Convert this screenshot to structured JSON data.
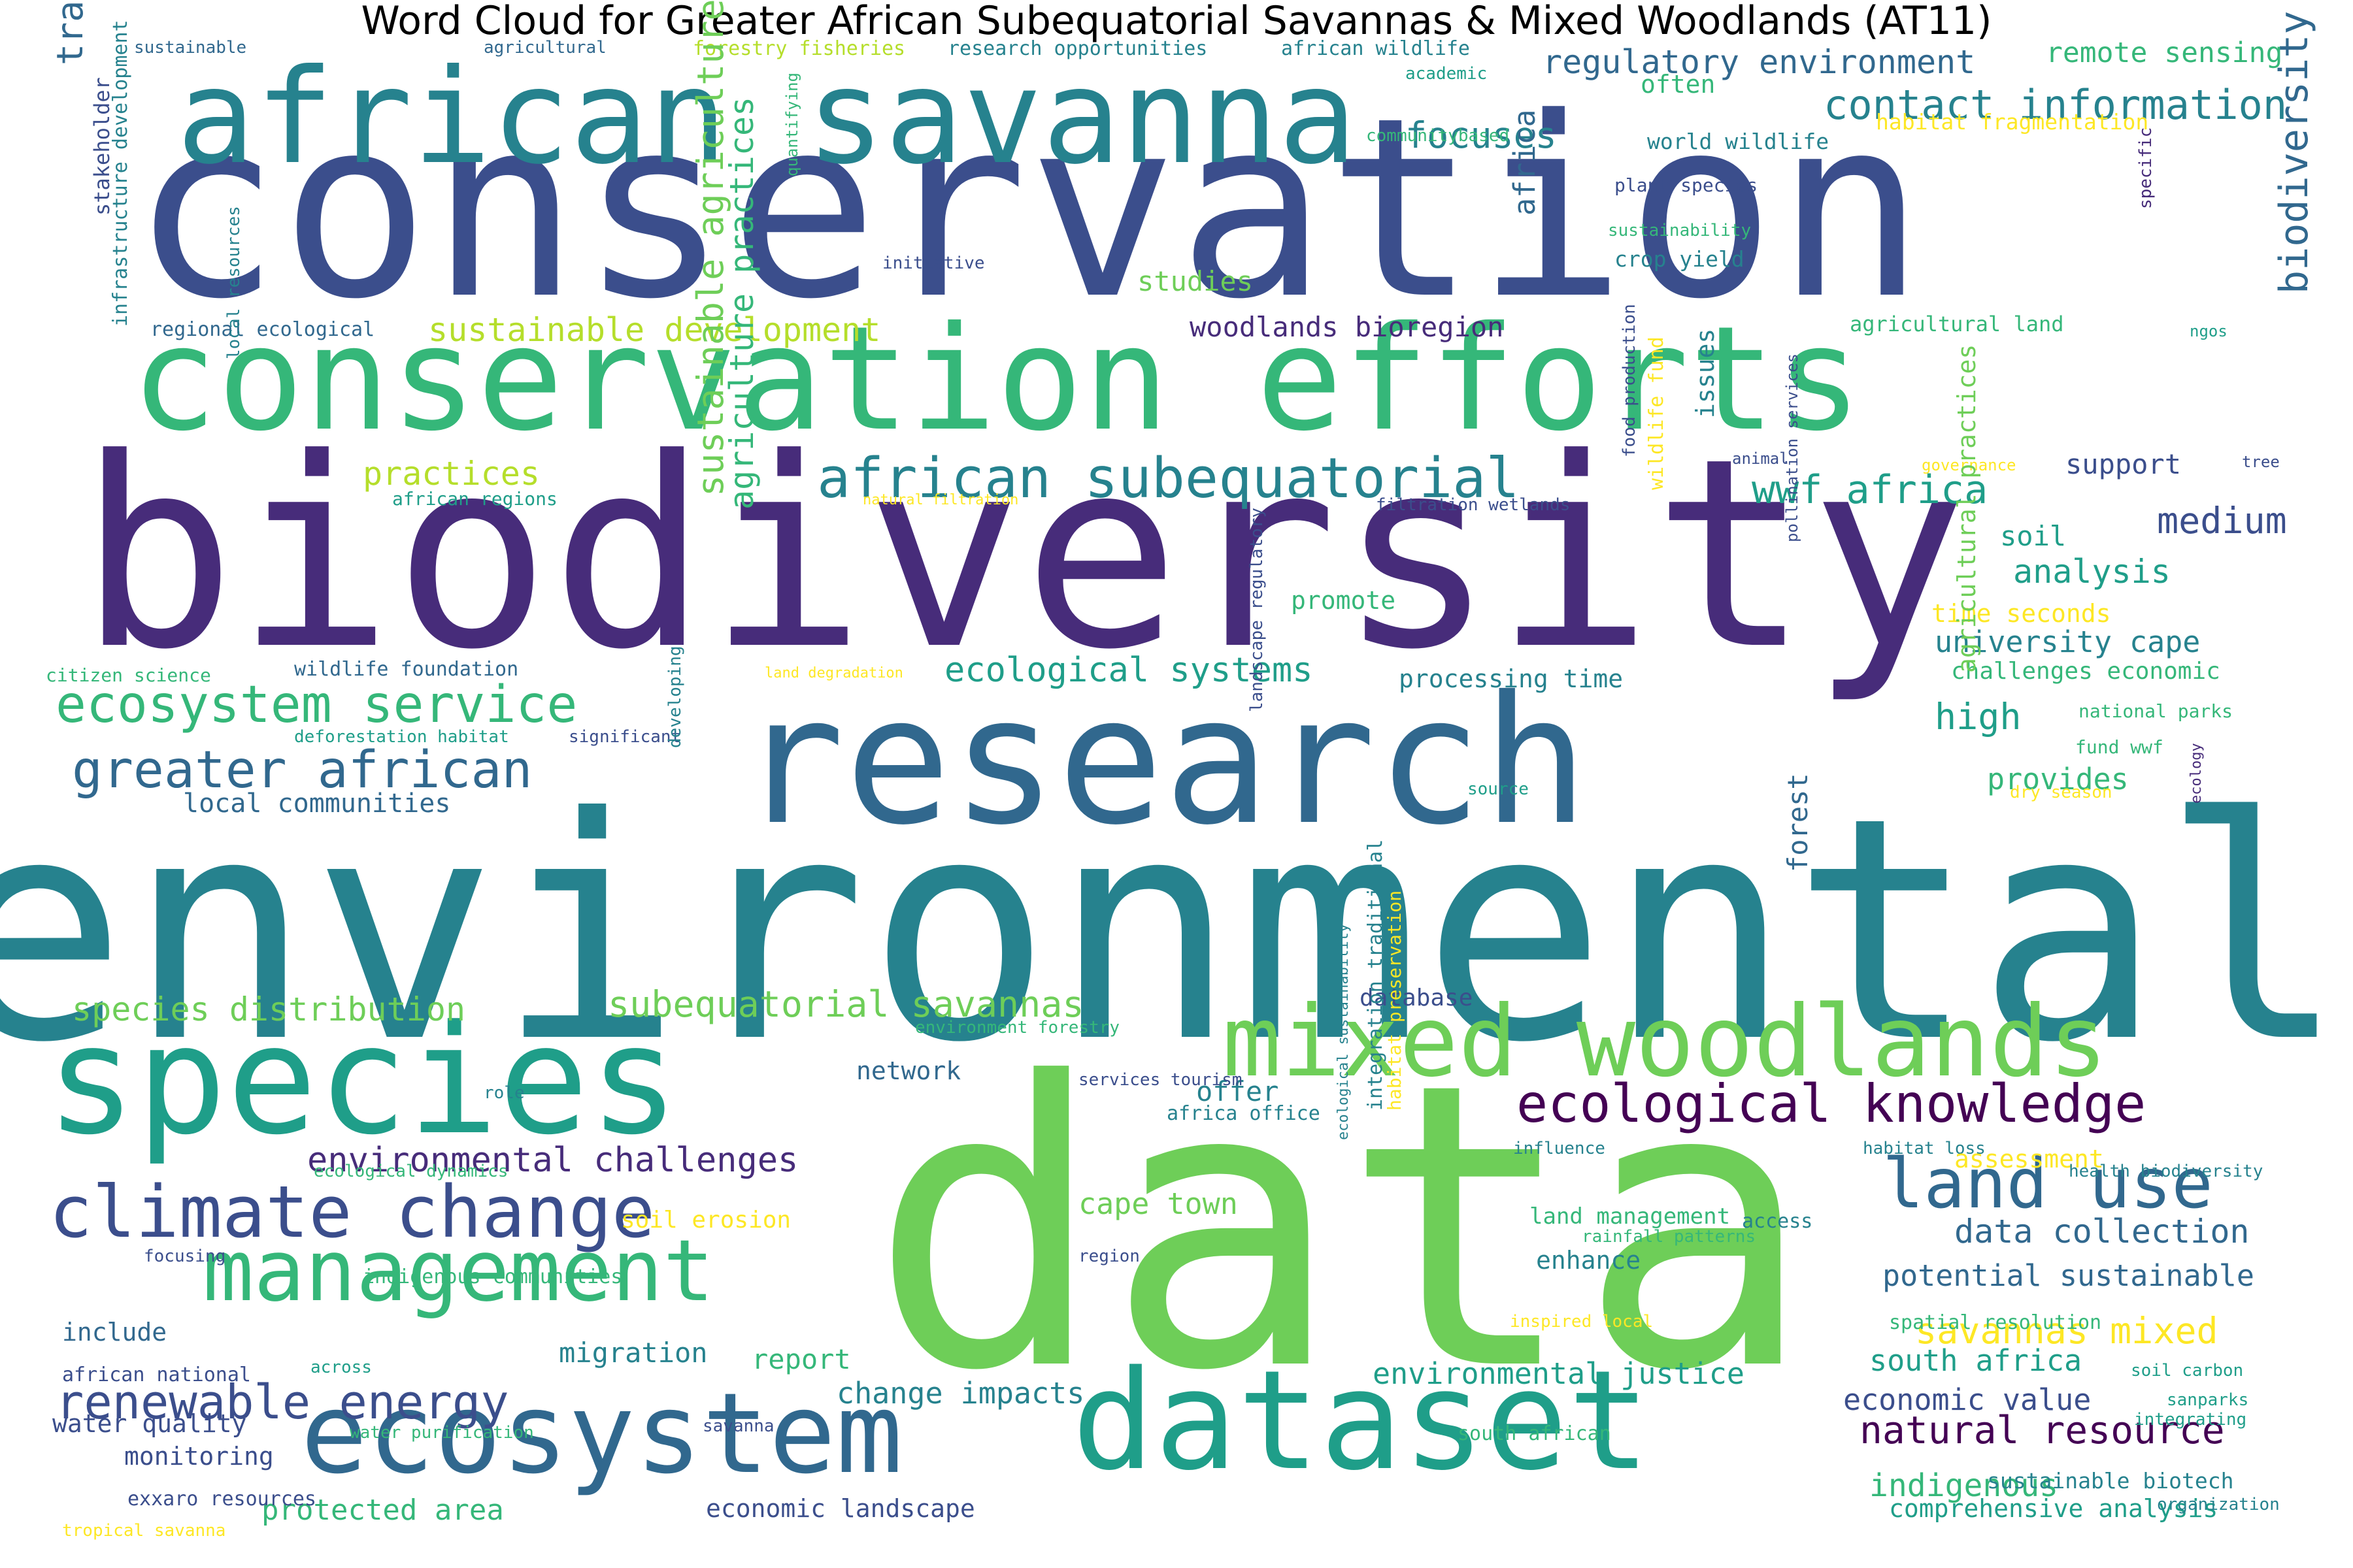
{
  "title": "Word Cloud for Greater African Subequatorial Savannas & Mixed Woodlands (AT11)",
  "palette": {
    "dark_purple": "#440154",
    "purple": "#472c7a",
    "indigo": "#3b4e8c",
    "blue": "#31688e",
    "teal_blue": "#26828e",
    "teal": "#1f9e89",
    "green_teal": "#35b779",
    "green": "#6ece58",
    "light_green": "#b5de2b",
    "yellow": "#fde725"
  },
  "words": [
    {
      "text": "conservation",
      "c": "indigo"
    },
    {
      "text": "biodiversity",
      "c": "purple"
    },
    {
      "text": "environmental",
      "c": "teal_blue"
    },
    {
      "text": "data",
      "c": "green"
    },
    {
      "text": "research",
      "c": "blue"
    },
    {
      "text": "african savanna",
      "c": "teal_blue"
    },
    {
      "text": "conservation efforts",
      "c": "green_teal"
    },
    {
      "text": "species",
      "c": "teal"
    },
    {
      "text": "dataset",
      "c": "teal"
    },
    {
      "text": "ecosystem",
      "c": "blue"
    },
    {
      "text": "mixed woodlands",
      "c": "green"
    },
    {
      "text": "management",
      "c": "green_teal"
    },
    {
      "text": "climate change",
      "c": "indigo"
    },
    {
      "text": "land use",
      "c": "blue"
    },
    {
      "text": "african subequatorial",
      "c": "teal_blue"
    },
    {
      "text": "greater african",
      "c": "blue"
    },
    {
      "text": "ecosystem service",
      "c": "green_teal"
    },
    {
      "text": "ecological knowledge",
      "c": "dark_purple"
    },
    {
      "text": "renewable energy",
      "c": "indigo"
    },
    {
      "text": "contact information",
      "c": "teal_blue"
    },
    {
      "text": "biodiversity conservation",
      "c": "blue"
    },
    {
      "text": "traditional ecological",
      "c": "blue"
    },
    {
      "text": "regulatory environment",
      "c": "blue"
    },
    {
      "text": "focuses",
      "c": "teal_blue"
    },
    {
      "text": "wwf africa",
      "c": "teal"
    },
    {
      "text": "practices",
      "c": "light_green"
    },
    {
      "text": "sustainable development",
      "c": "light_green"
    },
    {
      "text": "woodlands bioregion",
      "c": "purple"
    },
    {
      "text": "studies",
      "c": "green"
    },
    {
      "text": "ecological systems",
      "c": "teal"
    },
    {
      "text": "subequatorial savannas",
      "c": "green"
    },
    {
      "text": "species distribution",
      "c": "green"
    },
    {
      "text": "local communities",
      "c": "blue"
    },
    {
      "text": "environmental challenges",
      "c": "purple"
    },
    {
      "text": "natural resource",
      "c": "dark_purple"
    },
    {
      "text": "data collection",
      "c": "blue"
    },
    {
      "text": "potential sustainable",
      "c": "blue"
    },
    {
      "text": "savannas mixed",
      "c": "yellow"
    },
    {
      "text": "south africa",
      "c": "teal"
    },
    {
      "text": "indigenous",
      "c": "green_teal"
    },
    {
      "text": "environmental justice",
      "c": "teal"
    },
    {
      "text": "change impacts",
      "c": "teal_blue"
    },
    {
      "text": "protected area",
      "c": "green_teal"
    },
    {
      "text": "economic landscape",
      "c": "indigo"
    },
    {
      "text": "economic value",
      "c": "indigo"
    },
    {
      "text": "comprehensive analysis",
      "c": "teal"
    },
    {
      "text": "medium",
      "c": "indigo"
    },
    {
      "text": "analysis",
      "c": "teal"
    },
    {
      "text": "support",
      "c": "indigo"
    },
    {
      "text": "soil",
      "c": "teal"
    },
    {
      "text": "remote sensing",
      "c": "green_teal"
    },
    {
      "text": "university cape",
      "c": "teal_blue"
    },
    {
      "text": "high",
      "c": "teal"
    },
    {
      "text": "provides",
      "c": "green_teal"
    },
    {
      "text": "cape town",
      "c": "green"
    },
    {
      "text": "offer",
      "c": "teal_blue"
    },
    {
      "text": "enhance",
      "c": "teal_blue"
    },
    {
      "text": "network",
      "c": "blue"
    },
    {
      "text": "migration",
      "c": "teal_blue"
    },
    {
      "text": "report",
      "c": "green_teal"
    },
    {
      "text": "include",
      "c": "blue"
    },
    {
      "text": "water quality",
      "c": "indigo"
    },
    {
      "text": "monitoring",
      "c": "indigo"
    },
    {
      "text": "database",
      "c": "indigo"
    },
    {
      "text": "processing time",
      "c": "teal_blue"
    },
    {
      "text": "promote",
      "c": "green_teal"
    },
    {
      "text": "time seconds",
      "c": "yellow"
    },
    {
      "text": "challenges economic",
      "c": "green_teal"
    },
    {
      "text": "africa",
      "c": "blue"
    },
    {
      "text": "issues",
      "c": "teal_blue"
    },
    {
      "text": "often",
      "c": "green_teal"
    },
    {
      "text": "crop yield",
      "c": "teal_blue"
    },
    {
      "text": "world wildlife",
      "c": "teal_blue"
    },
    {
      "text": "habitat fragmentation",
      "c": "yellow"
    },
    {
      "text": "plant species",
      "c": "indigo"
    },
    {
      "text": "sustainability",
      "c": "green_teal"
    },
    {
      "text": "agricultural land",
      "c": "green_teal"
    },
    {
      "text": "forestry fisheries",
      "c": "light_green"
    },
    {
      "text": "research opportunities",
      "c": "teal_blue"
    },
    {
      "text": "african wildlife",
      "c": "teal_blue"
    },
    {
      "text": "sustainable",
      "c": "blue"
    },
    {
      "text": "agricultural",
      "c": "blue"
    },
    {
      "text": "academic",
      "c": "teal"
    },
    {
      "text": "communitybased",
      "c": "green_teal"
    },
    {
      "text": "initiative",
      "c": "indigo"
    },
    {
      "text": "regional ecological",
      "c": "blue"
    },
    {
      "text": "african regions",
      "c": "teal"
    },
    {
      "text": "citizen science",
      "c": "green_teal"
    },
    {
      "text": "wildlife foundation",
      "c": "blue"
    },
    {
      "text": "deforestation habitat",
      "c": "teal"
    },
    {
      "text": "significant",
      "c": "indigo"
    },
    {
      "text": "land degradation",
      "c": "yellow"
    },
    {
      "text": "natural filtration",
      "c": "yellow"
    },
    {
      "text": "filtration wetlands",
      "c": "indigo"
    },
    {
      "text": "animal",
      "c": "indigo"
    },
    {
      "text": "governance",
      "c": "yellow"
    },
    {
      "text": "tree",
      "c": "indigo"
    },
    {
      "text": "ngos",
      "c": "teal"
    },
    {
      "text": "national parks",
      "c": "green_teal"
    },
    {
      "text": "fund wwf",
      "c": "green_teal"
    },
    {
      "text": "dry season",
      "c": "yellow"
    },
    {
      "text": "source",
      "c": "teal"
    },
    {
      "text": "environment forestry",
      "c": "green_teal"
    },
    {
      "text": "services tourism",
      "c": "indigo"
    },
    {
      "text": "africa office",
      "c": "teal_blue"
    },
    {
      "text": "role",
      "c": "teal_blue"
    },
    {
      "text": "ecological dynamics",
      "c": "green_teal"
    },
    {
      "text": "soil erosion",
      "c": "yellow"
    },
    {
      "text": "focusing",
      "c": "indigo"
    },
    {
      "text": "indigenous communities",
      "c": "green_teal"
    },
    {
      "text": "african national",
      "c": "indigo"
    },
    {
      "text": "across",
      "c": "teal"
    },
    {
      "text": "savanna",
      "c": "indigo"
    },
    {
      "text": "water purification",
      "c": "green_teal"
    },
    {
      "text": "south african",
      "c": "green_teal"
    },
    {
      "text": "exxaro resources",
      "c": "indigo"
    },
    {
      "text": "tropical savanna",
      "c": "yellow"
    },
    {
      "text": "region",
      "c": "indigo"
    },
    {
      "text": "influence",
      "c": "teal_blue"
    },
    {
      "text": "habitat loss",
      "c": "teal_blue"
    },
    {
      "text": "assessment",
      "c": "yellow"
    },
    {
      "text": "health biodiversity",
      "c": "teal_blue"
    },
    {
      "text": "land management",
      "c": "green_teal"
    },
    {
      "text": "access",
      "c": "teal_blue"
    },
    {
      "text": "rainfall patterns",
      "c": "green_teal"
    },
    {
      "text": "inspired local",
      "c": "yellow"
    },
    {
      "text": "spatial resolution",
      "c": "green_teal"
    },
    {
      "text": "soil carbon",
      "c": "teal"
    },
    {
      "text": "sanparks",
      "c": "teal"
    },
    {
      "text": "integrating",
      "c": "teal"
    },
    {
      "text": "sustainable biotech",
      "c": "teal_blue"
    },
    {
      "text": "organization",
      "c": "teal_blue"
    },
    {
      "text": "specific",
      "c": "purple"
    },
    {
      "text": "stakeholder",
      "c": "indigo"
    },
    {
      "text": "infrastructure development",
      "c": "teal_blue"
    },
    {
      "text": "local resources",
      "c": "teal_blue"
    },
    {
      "text": "quantifying",
      "c": "green_teal"
    },
    {
      "text": "sustainable agriculture",
      "c": "green"
    },
    {
      "text": "agriculture practices",
      "c": "green_teal"
    },
    {
      "text": "developing",
      "c": "teal_blue"
    },
    {
      "text": "landscape regulatory",
      "c": "indigo"
    },
    {
      "text": "food production",
      "c": "indigo"
    },
    {
      "text": "wildlife fund",
      "c": "yellow"
    },
    {
      "text": "pollination services",
      "c": "indigo"
    },
    {
      "text": "forest",
      "c": "blue"
    },
    {
      "text": "agricultural practices",
      "c": "green"
    },
    {
      "text": "ecology",
      "c": "purple"
    },
    {
      "text": "ecological sustainability",
      "c": "teal_blue"
    },
    {
      "text": "integration traditional",
      "c": "teal_blue"
    },
    {
      "text": "habitat preservation",
      "c": "yellow"
    }
  ]
}
